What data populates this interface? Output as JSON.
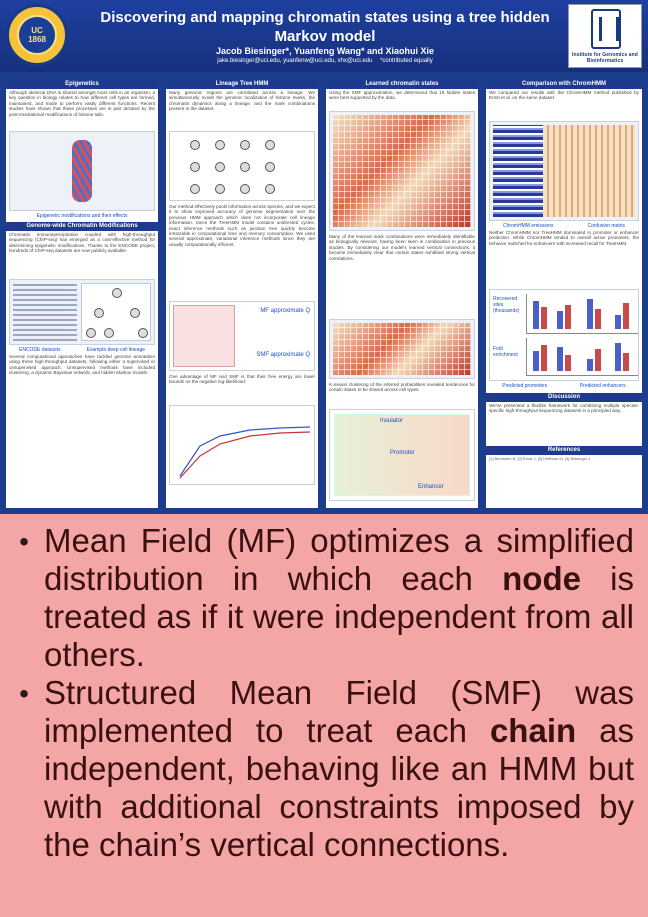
{
  "header": {
    "title": "Discovering and mapping chromatin states using a tree hidden Markov model",
    "authors": "Jacob Biesinger*, Yuanfeng Wang* and Xiaohui Xie",
    "emails": "jake.biesinger@uci.edu, yuanfenw@uci.edu, xhx@uci.edu",
    "contributed_note": "*contributed equally",
    "logo_left_text": "THE UNIVERSITY OF CALIFORNIA IRVINE",
    "logo_right_text": "Institute for Genomics and Bioinformatics"
  },
  "sections": {
    "epigenetics": "Epigenetics",
    "lineage_tree_hmm": "Lineage Tree HMM",
    "learned_states": "Learned chromatin states",
    "comparison": "Comparison with ChromHMM",
    "genome_wide": "Genome-wide Chromatin Modifications",
    "discussion": "Discussion",
    "references": "References"
  },
  "captions": {
    "epigenetic_modifications": "Epigenetic modifications and their effects",
    "encode_datasets": "ENCODE datasets",
    "example_lineage": "Example deep cell lineage",
    "mf_approximate": "MF approximate Q",
    "smf_approximate": "SMF approximate Q",
    "chromhmm_emissions": "ChromHMM emissions",
    "confusion_matrix": "Confusion matrix",
    "recovered_sites": "Recovered sites (thousands)",
    "fold_enrichment": "Fold enrichment",
    "predicted_promoters": "Predicted promoters",
    "predicted_enhancers": "Predicted enhancers",
    "insulator": "Insulator",
    "promoter": "Promoter",
    "enhancer": "Enhancer"
  },
  "bullets": [
    {
      "pre": "Mean Field (MF) optimizes a simplified distribution in which each ",
      "bold": "node",
      "post": " is treated as if it were independent from all others."
    },
    {
      "pre": "Structured Mean Field (SMF) was implemented to treat each ",
      "bold": "chain",
      "post": " as independent, behaving like an HMM but with additional constraints imposed by the chain’s vertical connections."
    }
  ]
}
